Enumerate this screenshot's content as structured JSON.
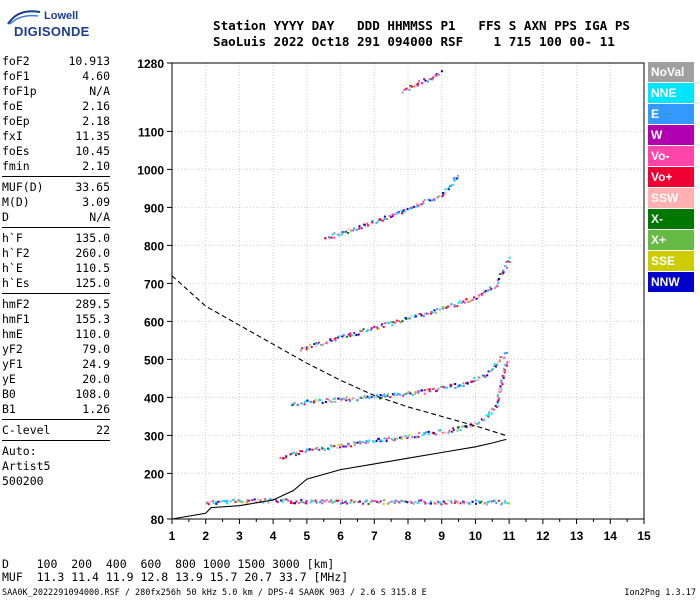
{
  "logo": {
    "line1": "Lowell",
    "line2": "DIGISONDE"
  },
  "header": {
    "line1": "Station YYYY DAY   DDD HHMMSS P1   FFS S AXN PPS IGA PS",
    "line2": "SaoLuis 2022 Oct18 291 094000 RSF    1 715 100 00- 11"
  },
  "params": {
    "group1": [
      {
        "name": "foF2",
        "value": "10.913"
      },
      {
        "name": "foF1",
        "value": "4.60"
      },
      {
        "name": "foF1p",
        "value": "N/A"
      },
      {
        "name": "foE",
        "value": "2.16"
      },
      {
        "name": "foEp",
        "value": "2.18"
      },
      {
        "name": "fxI",
        "value": "11.35"
      },
      {
        "name": "foEs",
        "value": "10.45"
      },
      {
        "name": "fmin",
        "value": "2.10"
      }
    ],
    "group2": [
      {
        "name": "MUF(D)",
        "value": "33.65"
      },
      {
        "name": "M(D)",
        "value": "3.09"
      },
      {
        "name": "D",
        "value": "N/A"
      }
    ],
    "group3": [
      {
        "name": "h`F",
        "value": "135.0"
      },
      {
        "name": "h`F2",
        "value": "260.0"
      },
      {
        "name": "h`E",
        "value": "110.5"
      },
      {
        "name": "h`Es",
        "value": "125.0"
      }
    ],
    "group4": [
      {
        "name": "hmF2",
        "value": "289.5"
      },
      {
        "name": "hmF1",
        "value": "155.3"
      },
      {
        "name": "hmE",
        "value": "110.0"
      },
      {
        "name": "yF2",
        "value": "79.0"
      },
      {
        "name": "yF1",
        "value": "24.9"
      },
      {
        "name": "yE",
        "value": "20.0"
      },
      {
        "name": "B0",
        "value": "108.0"
      },
      {
        "name": "B1",
        "value": "1.26"
      }
    ],
    "group5": [
      {
        "name": "C-level",
        "value": "22"
      }
    ],
    "auto": [
      "Auto:",
      "Artist5",
      "500200"
    ]
  },
  "legend": [
    {
      "label": "NoVal",
      "color": "#a0a0a0"
    },
    {
      "label": "NNE",
      "color": "#00e5ff"
    },
    {
      "label": "E",
      "color": "#3399ff"
    },
    {
      "label": "W",
      "color": "#b000b0"
    },
    {
      "label": "Vo-",
      "color": "#ff44aa"
    },
    {
      "label": "Vo+",
      "color": "#ee0033"
    },
    {
      "label": "SSW",
      "color": "#ffb0b0"
    },
    {
      "label": "X-",
      "color": "#007700"
    },
    {
      "label": "X+",
      "color": "#66bb44"
    },
    {
      "label": "SSE",
      "color": "#cccc00"
    },
    {
      "label": "NNW",
      "color": "#0000cc"
    }
  ],
  "muf": {
    "line1": "D    100  200  400  600  800 1000 1500 3000 [km]",
    "line2": "MUF  11.3 11.4 11.9 12.8 13.9 15.7 20.7 33.7 [MHz]"
  },
  "footer": {
    "left": "SAA0K_2022291094000.RSF / 280fx256h 50 kHz 5.0 km / DPS-4 SAA0K 903 / 2.6 S 315.8 E",
    "right": "Ion2Png 1.3.17"
  },
  "chart_data": {
    "type": "scatter",
    "x_ticks": [
      1,
      2,
      3,
      4,
      5,
      6,
      7,
      8,
      9,
      10,
      11,
      12,
      13,
      14,
      15
    ],
    "y_ticks": [
      80,
      200,
      300,
      400,
      500,
      600,
      700,
      800,
      900,
      1000,
      1100,
      1280
    ],
    "xlim": [
      1,
      15
    ],
    "ylim": [
      80,
      1280
    ],
    "grid": true,
    "echo_traces": [
      {
        "name": "E-Es trace",
        "x": [
          2.0,
          2.5,
          3.0,
          4.0,
          5.0,
          6.0,
          7.0,
          8.0,
          9.0,
          10.0,
          11.0
        ],
        "y": [
          125,
          128,
          130,
          130,
          128,
          128,
          127,
          127,
          126,
          126,
          126
        ]
      },
      {
        "name": "F trace",
        "x": [
          4.2,
          5.0,
          6.0,
          7.0,
          8.0,
          9.0,
          9.5,
          10.0,
          10.3,
          10.6,
          10.9
        ],
        "y": [
          245,
          262,
          275,
          288,
          300,
          312,
          320,
          335,
          350,
          380,
          500
        ]
      },
      {
        "name": "F second hop",
        "x": [
          4.5,
          5.5,
          6.5,
          7.5,
          8.5,
          9.5,
          10.3,
          10.9
        ],
        "y": [
          385,
          393,
          400,
          408,
          418,
          435,
          460,
          520
        ]
      },
      {
        "name": "F multi-hop 2",
        "x": [
          4.8,
          6.0,
          7.0,
          8.0,
          9.0,
          10.0,
          10.6,
          11.0
        ],
        "y": [
          530,
          560,
          585,
          610,
          635,
          665,
          700,
          770
        ]
      },
      {
        "name": "F multi-hop 3",
        "x": [
          5.5,
          6.5,
          7.5,
          8.0,
          8.5,
          9.0,
          9.5
        ],
        "y": [
          820,
          850,
          880,
          900,
          918,
          935,
          990
        ]
      },
      {
        "name": "F multi-hop 4",
        "x": [
          7.8,
          8.2,
          8.6,
          9.0
        ],
        "y": [
          1210,
          1225,
          1240,
          1260
        ]
      }
    ],
    "profile_solid": {
      "x": [
        1.0,
        2.0,
        2.16,
        3.0,
        4.0,
        4.6,
        5.0,
        6.0,
        7.0,
        8.0,
        9.0,
        10.0,
        10.5,
        10.913
      ],
      "y": [
        80,
        95,
        110,
        115,
        130,
        155,
        185,
        210,
        225,
        240,
        255,
        270,
        280,
        289.5
      ]
    },
    "profile_dashed": {
      "x": [
        1.0,
        1.5,
        2.0,
        3.0,
        4.0,
        5.0,
        6.0,
        7.0,
        8.0,
        9.0,
        10.0,
        10.9
      ],
      "y": [
        720,
        680,
        640,
        590,
        540,
        490,
        445,
        405,
        375,
        350,
        325,
        300
      ]
    }
  }
}
